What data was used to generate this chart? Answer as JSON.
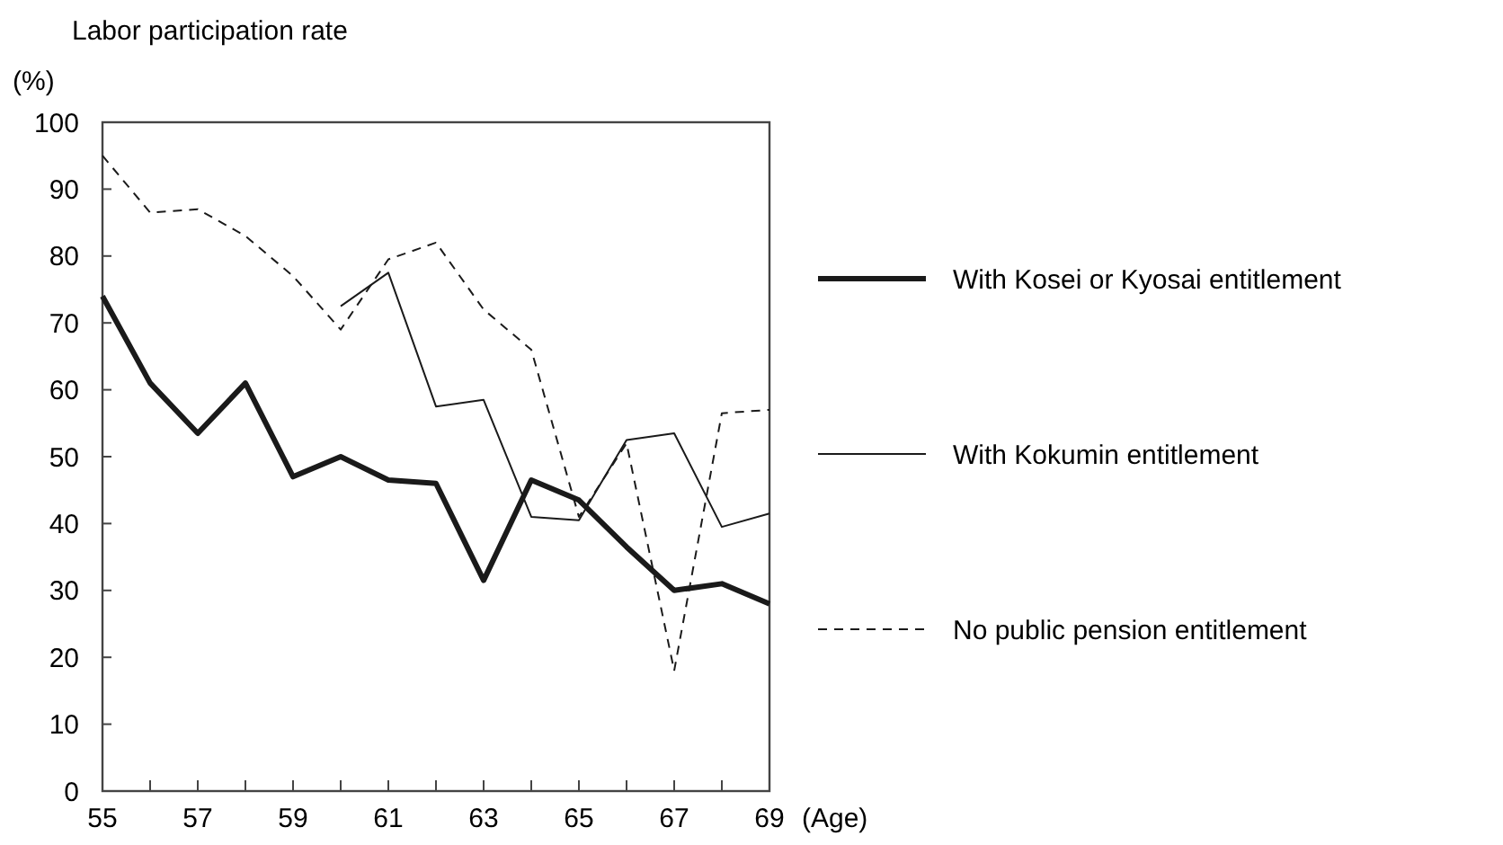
{
  "chart_data": {
    "type": "line",
    "title": "Labor  participation rate",
    "ylabel": "(%)",
    "xlabel": "(Age)",
    "x": [
      55,
      56,
      57,
      58,
      59,
      60,
      61,
      62,
      63,
      64,
      65,
      66,
      67,
      68,
      69
    ],
    "xlim": [
      55,
      69
    ],
    "xticks": [
      55,
      {
        "value": 56,
        "label": null
      },
      57,
      {
        "value": 58,
        "label": null
      },
      59,
      {
        "value": 60,
        "label": null
      },
      61,
      {
        "value": 62,
        "label": null
      },
      63,
      {
        "value": 64,
        "label": null
      },
      65,
      {
        "value": 66,
        "label": null
      },
      67,
      {
        "value": 68,
        "label": null
      },
      69
    ],
    "ylim": [
      0,
      100
    ],
    "yticks": [
      0,
      10,
      20,
      30,
      40,
      50,
      60,
      70,
      80,
      90,
      100
    ],
    "grid": false,
    "legend": "right",
    "series": [
      {
        "name": "With Kosei or Kyosai entitlement",
        "color": "#1a1a1a",
        "line_style": "solid",
        "values": [
          74,
          61,
          53.5,
          61,
          47,
          50,
          46.5,
          46,
          31.5,
          46.5,
          43.5,
          36.5,
          30,
          31,
          28
        ]
      },
      {
        "name": "With Kokumin entitlement",
        "color": "#1a1a1a",
        "line_style": "solid",
        "values": [
          null,
          null,
          null,
          null,
          null,
          72.5,
          77.5,
          57.5,
          58.5,
          41,
          40.5,
          52.5,
          53.5,
          39.5,
          41.5
        ]
      },
      {
        "name": "No public pension entitlement",
        "color": "#1a1a1a",
        "line_style": "dashed",
        "values": [
          95,
          86.5,
          87,
          83,
          77,
          69,
          79.5,
          82,
          72,
          66,
          41,
          52,
          18,
          56.5,
          57
        ]
      }
    ]
  }
}
